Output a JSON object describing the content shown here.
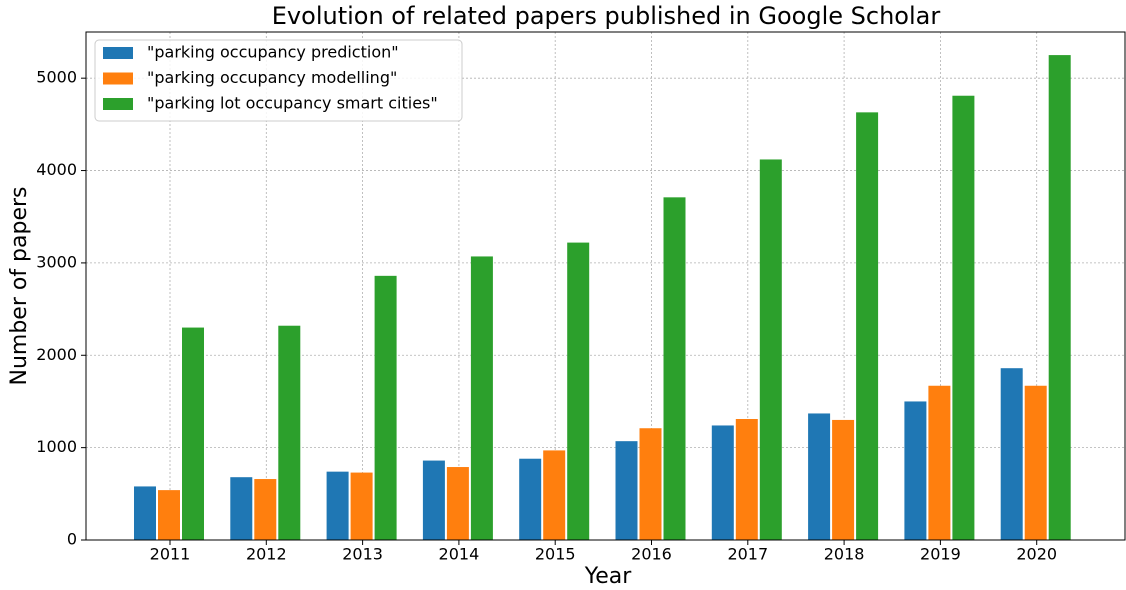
{
  "chart_data": {
    "type": "bar",
    "title": "Evolution of related papers published in Google Scholar",
    "x_label": "Year",
    "y_label": "Number of papers",
    "categories": [
      "2011",
      "2012",
      "2013",
      "2014",
      "2015",
      "2016",
      "2017",
      "2018",
      "2019",
      "2020"
    ],
    "series": [
      {
        "name": "\"parking occupancy prediction\"",
        "color": "#1f77b4",
        "values": [
          580,
          680,
          740,
          860,
          880,
          1070,
          1240,
          1370,
          1500,
          1860
        ]
      },
      {
        "name": "\"parking occupancy modelling\"",
        "color": "#ff7f0e",
        "values": [
          540,
          660,
          730,
          790,
          970,
          1210,
          1310,
          1300,
          1670,
          1670
        ]
      },
      {
        "name": "\"parking lot occupancy smart cities\"",
        "color": "#2ca02c",
        "values": [
          2300,
          2320,
          2860,
          3070,
          3220,
          3710,
          4120,
          4630,
          4810,
          5250
        ]
      }
    ],
    "ylim": [
      0,
      5500
    ],
    "yticks": [
      0,
      1000,
      2000,
      3000,
      4000,
      5000
    ],
    "grid": true,
    "legend": "upper left"
  }
}
